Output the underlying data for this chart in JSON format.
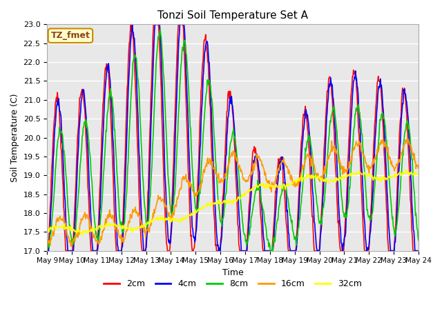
{
  "title": "Tonzi Soil Temperature Set A",
  "xlabel": "Time",
  "ylabel": "Soil Temperature (C)",
  "ylim": [
    17.0,
    23.0
  ],
  "yticks": [
    17.0,
    17.5,
    18.0,
    18.5,
    19.0,
    19.5,
    20.0,
    20.5,
    21.0,
    21.5,
    22.0,
    22.5,
    23.0
  ],
  "xtick_labels": [
    "May 9",
    "May 10",
    "May 11",
    "May 12",
    "May 13",
    "May 14",
    "May 15",
    "May 16",
    "May 17",
    "May 18",
    "May 19",
    "May 20",
    "May 21",
    "May 22",
    "May 23",
    "May 24"
  ],
  "series_colors": [
    "#ff0000",
    "#0000ff",
    "#00cc00",
    "#ff9900",
    "#ffff00"
  ],
  "series_labels": [
    "2cm",
    "4cm",
    "8cm",
    "16cm",
    "32cm"
  ],
  "annotation_text": "TZ_fmet",
  "annotation_color": "#8B4513",
  "annotation_bg": "#ffffcc",
  "annotation_border": "#cc8800",
  "background_color": "#e8e8e8",
  "legend_linewidth": 2.0,
  "linewidth": 1.2,
  "n_points": 720
}
